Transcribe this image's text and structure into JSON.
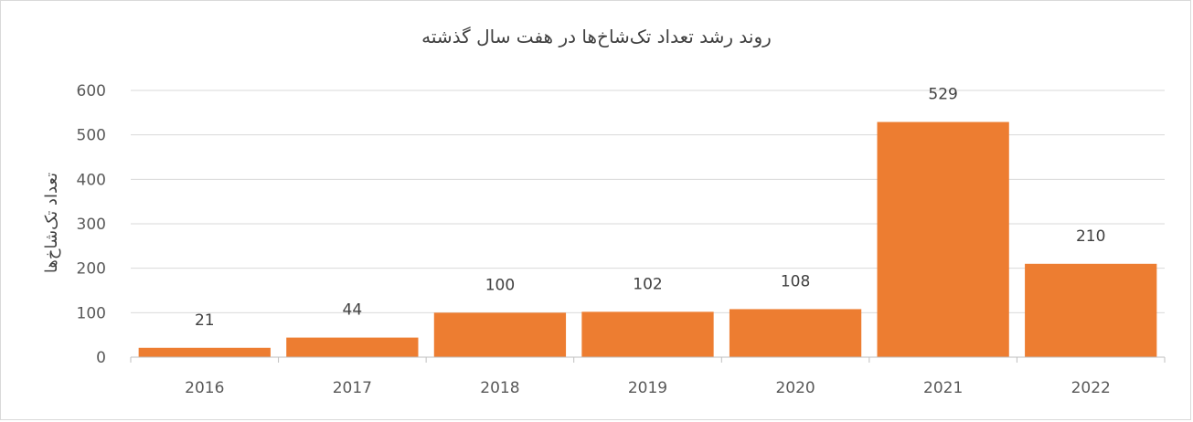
{
  "chart_data": {
    "type": "bar",
    "title": "روند رشد تعداد تک‌شاخ‌ها در هفت سال گذشته",
    "xlabel": "",
    "ylabel": "تعداد تک‌شاخ‌ها",
    "categories": [
      "2016",
      "2017",
      "2018",
      "2019",
      "2020",
      "2021",
      "2022"
    ],
    "values": [
      21,
      44,
      100,
      102,
      108,
      529,
      210
    ],
    "data_labels": [
      "21",
      "44",
      "100",
      "102",
      "108",
      "529",
      "210"
    ],
    "ylim": [
      0,
      600
    ],
    "yticks": [
      0,
      100,
      200,
      300,
      400,
      500,
      600
    ],
    "grid": true,
    "bar_color": "#ED7D31",
    "legend": "none"
  }
}
